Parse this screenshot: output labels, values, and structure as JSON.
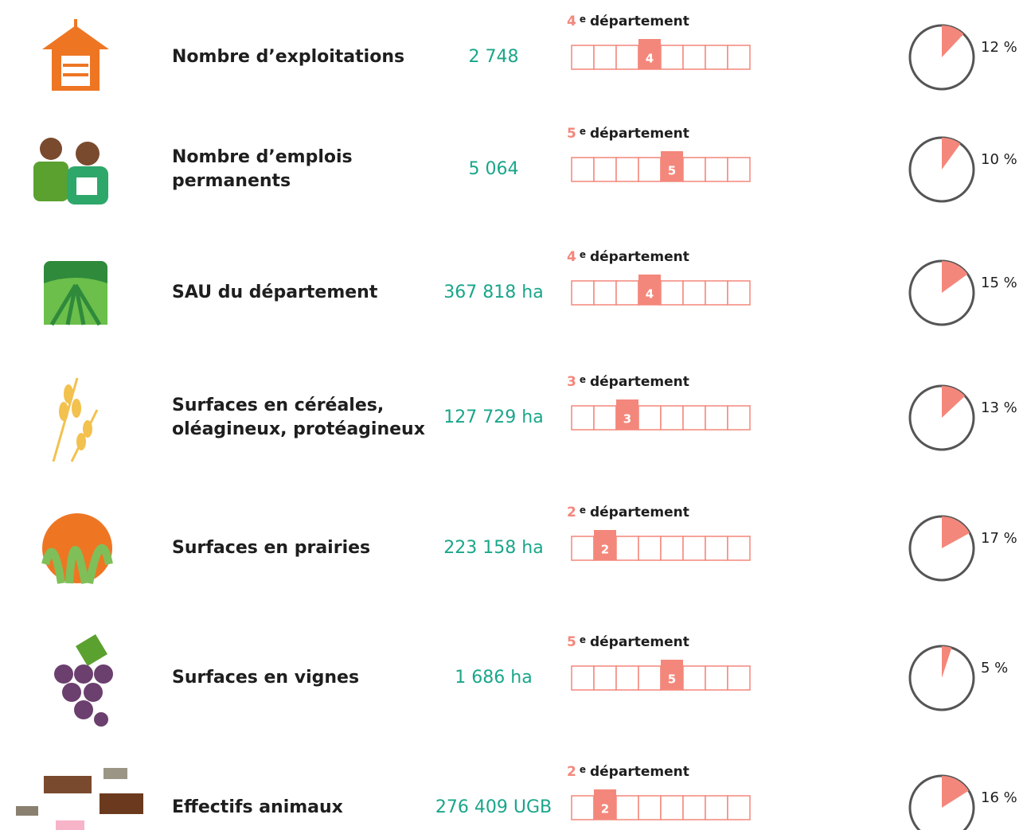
{
  "rows": [
    {
      "label": [
        "Nombre d’exploitations"
      ],
      "value": "2 748",
      "rank": 4,
      "rank_suffix": "e",
      "rank_word": "département",
      "share": {
        "value": 12,
        "label": "12 %"
      }
    },
    {
      "label": [
        "Nombre d’emplois",
        "permanents"
      ],
      "value": "5 064",
      "rank": 5,
      "rank_suffix": "e",
      "rank_word": "département",
      "share": {
        "value": 10,
        "label": "10 %"
      }
    },
    {
      "label": [
        "SAU du département"
      ],
      "value": "367 818 ha",
      "rank": 4,
      "rank_suffix": "e",
      "rank_word": "département",
      "share": {
        "value": 15,
        "label": "15 %"
      }
    },
    {
      "label": [
        "Surfaces en céréales,",
        "oléagineux, protéagineux"
      ],
      "value": "127 729 ha",
      "rank": 3,
      "rank_suffix": "e",
      "rank_word": "département",
      "share": {
        "value": 13,
        "label": "13 %"
      }
    },
    {
      "label": [
        "Surfaces en prairies"
      ],
      "value": "223 158 ha",
      "rank": 2,
      "rank_suffix": "e",
      "rank_word": "département",
      "share": {
        "value": 17,
        "label": "17 %"
      }
    },
    {
      "label": [
        "Surfaces en vignes"
      ],
      "value": "1 686 ha",
      "rank": 5,
      "rank_suffix": "e",
      "rank_word": "département",
      "share": {
        "value": 5,
        "label": "5 %"
      }
    },
    {
      "label": [
        "Effectifs animaux"
      ],
      "value": "276 409 UGB",
      "rank": 2,
      "rank_suffix": "e",
      "rank_word": "département",
      "share": {
        "value": 16,
        "label": "16 %"
      }
    }
  ]
}
